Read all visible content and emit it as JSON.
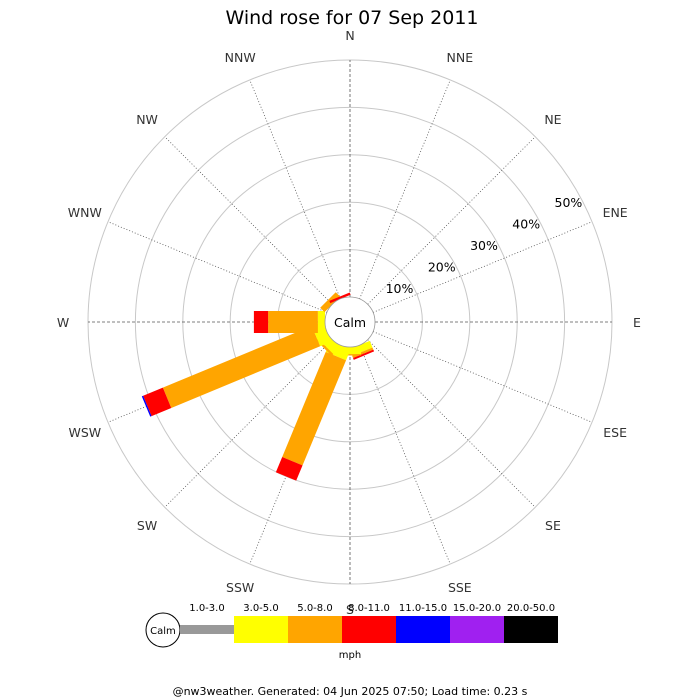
{
  "chart_data": {
    "type": "windrose",
    "title": "Wind rose for 07 Sep 2011",
    "directions": [
      "N",
      "NNE",
      "NE",
      "ENE",
      "E",
      "ESE",
      "SE",
      "SSE",
      "S",
      "SSW",
      "SW",
      "WSW",
      "W",
      "WNW",
      "NW",
      "NNW"
    ],
    "ring_labels": [
      "10%",
      "20%",
      "30%",
      "40%",
      "50%"
    ],
    "ring_values": [
      10,
      20,
      30,
      40,
      50
    ],
    "rmax": 50,
    "calm_label": "Calm",
    "speed_bins": [
      {
        "label": "1.0-3.0",
        "color": "#999999"
      },
      {
        "label": "3.0-5.0",
        "color": "#ffff00"
      },
      {
        "label": "5.0-8.0",
        "color": "#ffa500"
      },
      {
        "label": "8.0-11.0",
        "color": "#ff0000"
      },
      {
        "label": "11.0-15.0",
        "color": "#0000ff"
      },
      {
        "label": "15.0-20.0",
        "color": "#a020f0"
      },
      {
        "label": "20.0-50.0",
        "color": "#000000"
      }
    ],
    "legend_unit": "mph",
    "series": [
      {
        "direction": "N",
        "values": [
          0,
          0,
          0,
          0,
          0,
          0,
          0
        ]
      },
      {
        "direction": "NNE",
        "values": [
          0,
          0,
          0,
          0,
          0,
          0,
          0
        ]
      },
      {
        "direction": "NE",
        "values": [
          0,
          0,
          0,
          0,
          0,
          0,
          0
        ]
      },
      {
        "direction": "ENE",
        "values": [
          0,
          0,
          0,
          0,
          0,
          0,
          0
        ]
      },
      {
        "direction": "E",
        "values": [
          0,
          0,
          0,
          0,
          0,
          0,
          0
        ]
      },
      {
        "direction": "ESE",
        "values": [
          0,
          0,
          0,
          0,
          0,
          0,
          0
        ]
      },
      {
        "direction": "SE",
        "values": [
          0,
          0,
          0,
          0,
          0,
          0,
          0
        ]
      },
      {
        "direction": "SSE",
        "values": [
          0,
          1.5,
          0.5,
          0.4,
          0,
          0,
          0
        ]
      },
      {
        "direction": "S",
        "values": [
          0,
          1.5,
          0.3,
          0,
          0,
          0,
          0
        ]
      },
      {
        "direction": "SSW",
        "values": [
          0,
          2.5,
          24.0,
          3.5,
          0,
          0,
          0
        ]
      },
      {
        "direction": "SW",
        "values": [
          0,
          2.0,
          0.5,
          0,
          0,
          0,
          0
        ]
      },
      {
        "direction": "WSW",
        "values": [
          0,
          2.5,
          34.0,
          4.5,
          0.3,
          0,
          0
        ]
      },
      {
        "direction": "W",
        "values": [
          0,
          1.5,
          10.5,
          3.0,
          0,
          0,
          0
        ]
      },
      {
        "direction": "WNW",
        "values": [
          0,
          0,
          0,
          0,
          0,
          0,
          0
        ]
      },
      {
        "direction": "NW",
        "values": [
          0,
          0,
          1.3,
          0,
          0,
          0,
          0
        ]
      },
      {
        "direction": "NNW",
        "values": [
          0,
          0,
          0,
          0.5,
          0,
          0,
          0
        ]
      }
    ]
  },
  "footer": {
    "text": "@nw3weather. Generated: 04 Jun 2025 07:50; Load time: 0.23 s"
  }
}
